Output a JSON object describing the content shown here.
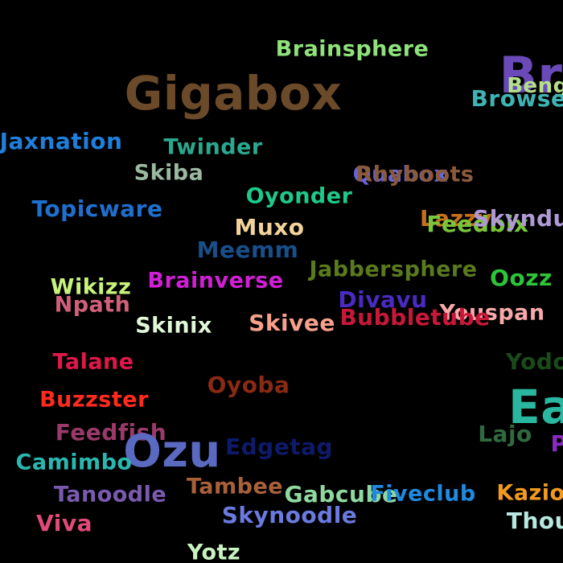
{
  "words": [
    {
      "text": "Brainsphere",
      "color": "#8fe27a"
    },
    {
      "text": "Gigabox",
      "color": "#6b4a2a"
    },
    {
      "text": "Br",
      "color": "#6a4ab8"
    },
    {
      "text": "Bengu",
      "color": "#b5e08a"
    },
    {
      "text": "Browse",
      "color": "#3fb3b3"
    },
    {
      "text": "Jaxnation",
      "color": "#1e7fdc"
    },
    {
      "text": "Twinder",
      "color": "#2aa88f"
    },
    {
      "text": "Skiba",
      "color": "#9bb8a0"
    },
    {
      "text": "Oyonder",
      "color": "#1ec98a"
    },
    {
      "text": "Quabox",
      "color": "#6a63d6"
    },
    {
      "text": "Rhyboots",
      "color": "#8a5a3a"
    },
    {
      "text": "Topicware",
      "color": "#1e6fce"
    },
    {
      "text": "Muxo",
      "color": "#f2d39a"
    },
    {
      "text": "Lazzy",
      "color": "#c86f1e"
    },
    {
      "text": "Feedbix",
      "color": "#7ac63a"
    },
    {
      "text": "Skyndu",
      "color": "#b09ad6"
    },
    {
      "text": "Meemm",
      "color": "#184f8a"
    },
    {
      "text": "Jabbersphere",
      "color": "#5a7a1e"
    },
    {
      "text": "Oozz",
      "color": "#2ec43a"
    },
    {
      "text": "Wikizz",
      "color": "#c8f27a"
    },
    {
      "text": "Brainverse",
      "color": "#d21ed6"
    },
    {
      "text": "Npath",
      "color": "#d0607a"
    },
    {
      "text": "Divavu",
      "color": "#4a2ac0"
    },
    {
      "text": "Youspan",
      "color": "#f7a8a8"
    },
    {
      "text": "Bubbletube",
      "color": "#c8183a"
    },
    {
      "text": "Skinix",
      "color": "#e0f7d8"
    },
    {
      "text": "Skivee",
      "color": "#f7a08a"
    },
    {
      "text": "Talane",
      "color": "#e0184a"
    },
    {
      "text": "Yodo",
      "color": "#1a4a1a"
    },
    {
      "text": "Oyoba",
      "color": "#8a2a14"
    },
    {
      "text": "Buzzster",
      "color": "#ff2a1e"
    },
    {
      "text": "Ea",
      "color": "#2ab7a0"
    },
    {
      "text": "Feedfish",
      "color": "#9a3a6a"
    },
    {
      "text": "Lajo",
      "color": "#2f6a40"
    },
    {
      "text": "Ozu",
      "color": "#5a6ac0"
    },
    {
      "text": "Edgetag",
      "color": "#0e1a6a"
    },
    {
      "text": "P",
      "color": "#8a2ac0"
    },
    {
      "text": "Camimbo",
      "color": "#2ab7b0"
    },
    {
      "text": "Tambee",
      "color": "#a8603a"
    },
    {
      "text": "Tanoodle",
      "color": "#7a5ab0"
    },
    {
      "text": "Gabcube",
      "color": "#8fd8a0"
    },
    {
      "text": "Fiveclub",
      "color": "#1e8ae0"
    },
    {
      "text": "Kazio",
      "color": "#f29a1e"
    },
    {
      "text": "Skynoodle",
      "color": "#6a7ae0"
    },
    {
      "text": "Viva",
      "color": "#e04a7a"
    },
    {
      "text": "Thou",
      "color": "#b8e8e0"
    },
    {
      "text": "Yotz",
      "color": "#c8f2c0"
    }
  ]
}
